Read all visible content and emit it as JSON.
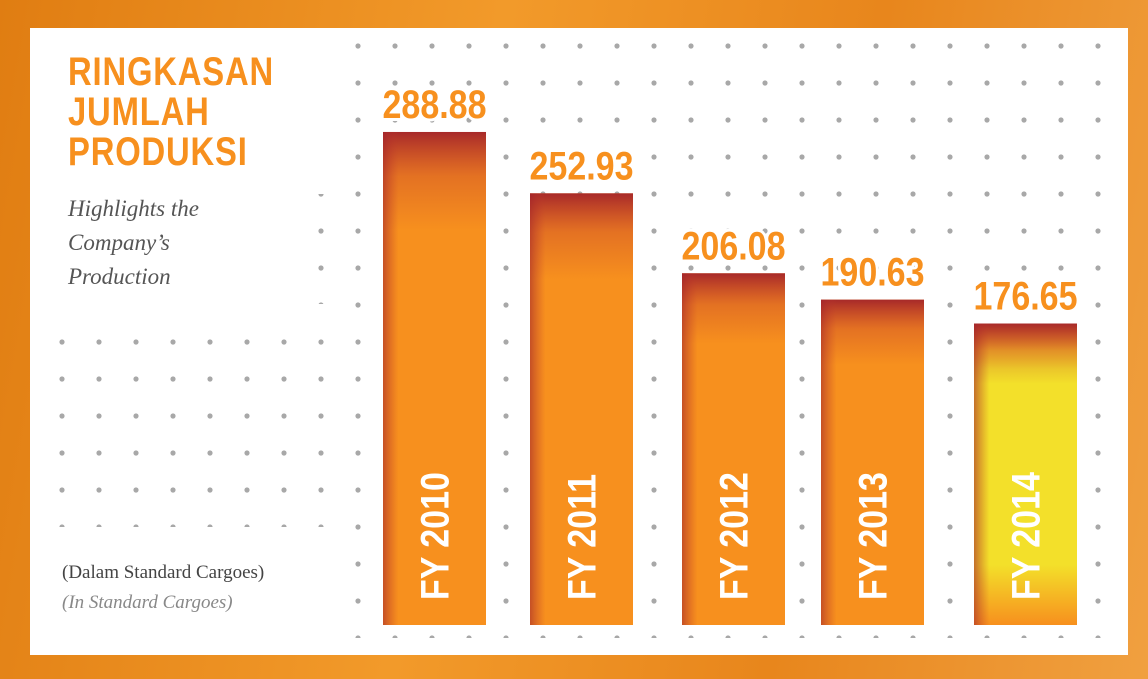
{
  "chart_data": {
    "type": "bar",
    "title": "RINGKASAN JUMLAH PRODUKSI",
    "subtitle": "Highlights the Company’s Production",
    "unit_label": "(Dalam Standard Cargoes)",
    "unit_label_en": "(In Standard Cargoes)",
    "categories": [
      "FY 2010",
      "FY 2011",
      "FY 2012",
      "FY 2013",
      "FY 2014"
    ],
    "values": [
      288.88,
      252.93,
      206.08,
      190.63,
      176.65
    ],
    "colors": [
      "#f7901e",
      "#f7901e",
      "#f7901e",
      "#f7901e",
      "#f3e02a"
    ],
    "ylim": [
      0,
      300
    ]
  }
}
